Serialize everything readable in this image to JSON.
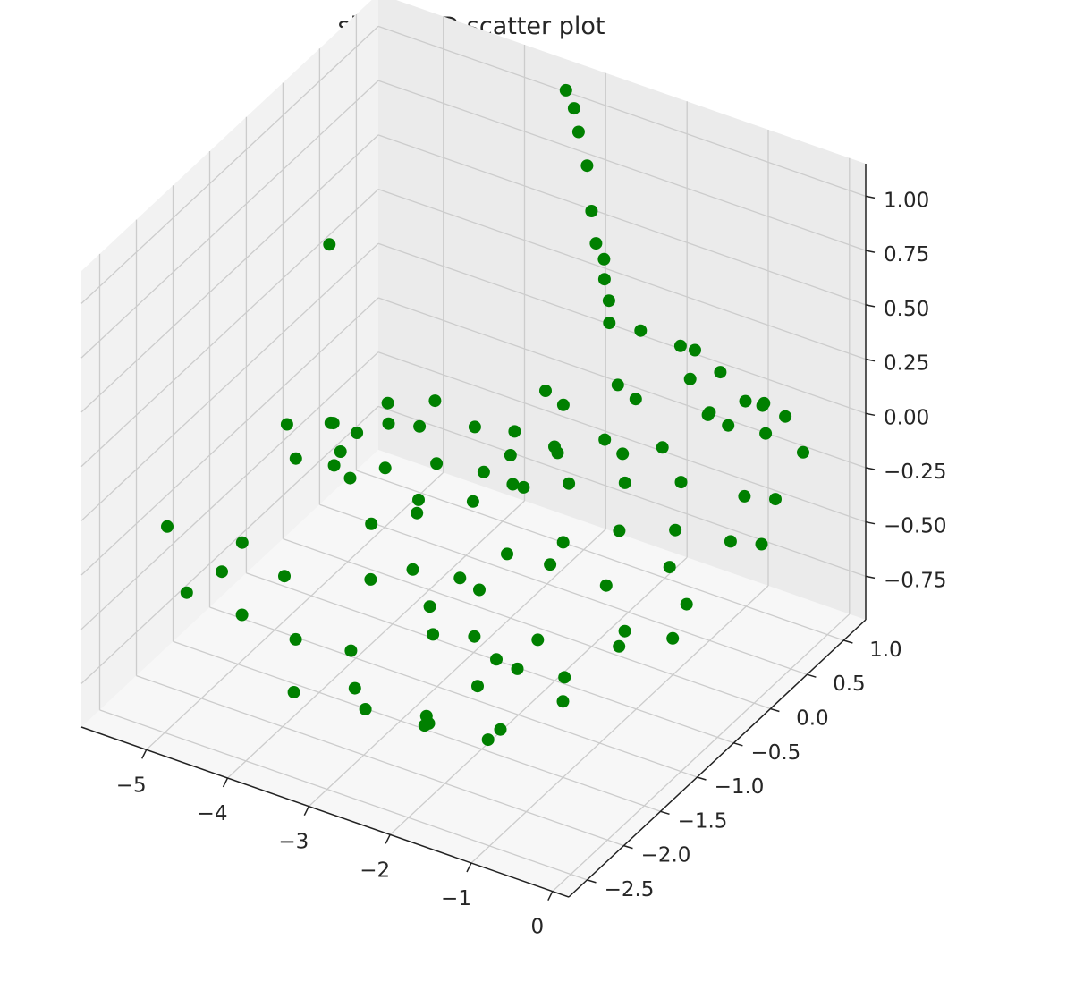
{
  "chart_data": {
    "type": "scatter",
    "projection": "3d",
    "title": "simple 3D scatter plot",
    "xlabel": "",
    "ylabel": "",
    "zlabel": "",
    "xlim": [
      -5.8,
      0.2
    ],
    "ylim": [
      -2.75,
      1.3
    ],
    "zlim": [
      -0.95,
      1.15
    ],
    "x_ticks": [
      "−5",
      "−4",
      "−3",
      "−2",
      "−1",
      "0"
    ],
    "y_ticks": [
      "−2.5",
      "−2.0",
      "−1.5",
      "−1.0",
      "−0.5",
      "0.0",
      "0.5",
      "1.0"
    ],
    "z_ticks": [
      "−0.75",
      "−0.50",
      "−0.25",
      "0.00",
      "0.25",
      "0.50",
      "0.75",
      "1.00"
    ],
    "x_tick_values": [
      -5,
      -4,
      -3,
      -2,
      -1,
      0
    ],
    "y_tick_values": [
      -2.5,
      -2.0,
      -1.5,
      -1.0,
      -0.5,
      0.0,
      0.5,
      1.0
    ],
    "z_tick_values": [
      -0.75,
      -0.5,
      -0.25,
      0.0,
      0.25,
      0.5,
      0.75,
      1.0
    ],
    "grid": true,
    "marker_color": "#008000",
    "series": [
      {
        "points": [
          [
            -3.4,
            1.2,
            1.05
          ],
          [
            -3.3,
            1.2,
            0.98
          ],
          [
            -3.2,
            1.15,
            0.9
          ],
          [
            -3.05,
            1.1,
            0.78
          ],
          [
            -2.95,
            1.05,
            0.6
          ],
          [
            -2.85,
            1.0,
            0.48
          ],
          [
            -2.75,
            1.0,
            0.42
          ],
          [
            -2.7,
            0.95,
            0.35
          ],
          [
            -2.6,
            0.9,
            0.28
          ],
          [
            -2.55,
            0.85,
            0.2
          ],
          [
            -5.3,
            -0.5,
            -0.2
          ],
          [
            -5.1,
            -0.6,
            -0.3
          ],
          [
            -5.0,
            -0.2,
            -0.25
          ],
          [
            -4.9,
            -0.3,
            -0.4
          ],
          [
            -4.8,
            -0.1,
            -0.3
          ],
          [
            -4.6,
            0.1,
            -0.2
          ],
          [
            -4.5,
            0.0,
            -0.25
          ],
          [
            -4.3,
            0.2,
            -0.3
          ],
          [
            -4.2,
            0.3,
            -0.2
          ],
          [
            -4.0,
            0.1,
            -0.4
          ],
          [
            -3.8,
            0.4,
            -0.3
          ],
          [
            -3.6,
            0.3,
            -0.45
          ],
          [
            -3.4,
            0.5,
            -0.3
          ],
          [
            -3.2,
            0.4,
            -0.5
          ],
          [
            -3.0,
            0.6,
            -0.35
          ],
          [
            -5.6,
            -1.8,
            -0.3
          ],
          [
            -5.4,
            -1.0,
            -0.6
          ],
          [
            -5.2,
            -1.5,
            -0.55
          ],
          [
            -5.0,
            -2.2,
            -0.4
          ],
          [
            -4.7,
            -1.2,
            -0.6
          ],
          [
            -4.5,
            -2.0,
            -0.5
          ],
          [
            -4.2,
            -1.6,
            -0.7
          ],
          [
            -4.0,
            -0.8,
            -0.65
          ],
          [
            -3.7,
            -1.4,
            -0.75
          ],
          [
            -3.5,
            -2.4,
            -0.6
          ],
          [
            -3.2,
            -1.9,
            -0.7
          ],
          [
            -3.0,
            -1.1,
            -0.55
          ],
          [
            -2.8,
            -2.2,
            -0.65
          ],
          [
            -2.5,
            -1.7,
            -0.8
          ],
          [
            -2.2,
            -2.0,
            -0.7
          ],
          [
            -2.0,
            -1.3,
            -0.6
          ],
          [
            -1.8,
            -2.5,
            -0.5
          ],
          [
            -1.5,
            -1.8,
            -0.7
          ],
          [
            -1.2,
            -2.3,
            -0.55
          ],
          [
            -1.0,
            -1.5,
            -0.6
          ],
          [
            -4.0,
            -0.6,
            -0.2
          ],
          [
            -3.9,
            -0.9,
            -0.35
          ],
          [
            -3.7,
            -0.5,
            -0.4
          ],
          [
            -3.5,
            -0.7,
            -0.25
          ],
          [
            -3.3,
            -1.0,
            -0.45
          ],
          [
            -3.1,
            -0.4,
            -0.3
          ],
          [
            -2.9,
            -0.8,
            -0.5
          ],
          [
            -2.7,
            -0.3,
            -0.2
          ],
          [
            -2.5,
            -0.6,
            -0.4
          ],
          [
            -2.3,
            -1.2,
            -0.35
          ],
          [
            -2.1,
            -0.2,
            -0.15
          ],
          [
            -1.9,
            -0.5,
            -0.3
          ],
          [
            -1.7,
            -0.9,
            -0.25
          ],
          [
            -1.5,
            -0.1,
            -0.1
          ],
          [
            -1.3,
            -0.4,
            -0.2
          ],
          [
            -1.1,
            -0.8,
            -0.3
          ],
          [
            -0.9,
            0.0,
            -0.05
          ],
          [
            -0.7,
            -0.3,
            -0.15
          ],
          [
            -0.5,
            -0.6,
            -0.2
          ],
          [
            -0.3,
            0.2,
            -0.1
          ],
          [
            -0.2,
            -0.1,
            -0.2
          ],
          [
            -0.1,
            0.4,
            -0.15
          ],
          [
            0.0,
            0.1,
            -0.25
          ],
          [
            -0.4,
            0.6,
            0.05
          ],
          [
            -0.6,
            0.8,
            0.1
          ],
          [
            -0.8,
            1.0,
            0.0
          ],
          [
            -1.0,
            0.5,
            0.1
          ],
          [
            -1.2,
            0.7,
            0.0
          ],
          [
            -1.4,
            0.3,
            -0.05
          ],
          [
            -1.6,
            0.9,
            0.05
          ],
          [
            -1.8,
            0.2,
            -0.1
          ],
          [
            -2.0,
            0.6,
            0.0
          ],
          [
            -2.2,
            0.4,
            -0.15
          ],
          [
            -2.4,
            0.8,
            -0.05
          ],
          [
            -2.6,
            0.2,
            -0.2
          ],
          [
            -2.8,
            0.5,
            -0.1
          ],
          [
            -3.0,
            0.0,
            -0.2
          ],
          [
            -3.2,
            0.7,
            -0.15
          ],
          [
            -1.9,
            1.1,
            0.1
          ],
          [
            -1.5,
            1.2,
            0.0
          ],
          [
            -1.1,
            1.1,
            -0.05
          ],
          [
            -0.7,
            1.2,
            -0.1
          ],
          [
            -0.3,
            1.0,
            -0.15
          ],
          [
            -2.3,
            1.0,
            0.15
          ],
          [
            -2.0,
            -1.6,
            -0.4
          ],
          [
            -1.6,
            -2.0,
            -0.45
          ],
          [
            -1.2,
            -1.9,
            -0.35
          ],
          [
            -0.8,
            -1.7,
            -0.4
          ],
          [
            -0.4,
            -1.4,
            -0.3
          ],
          [
            -0.1,
            -1.0,
            -0.35
          ],
          [
            -0.2,
            -0.7,
            -0.3
          ],
          [
            -0.6,
            -1.1,
            -0.35
          ],
          [
            -1.4,
            -1.4,
            -0.4
          ],
          [
            -2.6,
            -1.5,
            -0.5
          ],
          [
            -4.4,
            -0.9,
            0.05
          ],
          [
            -4.1,
            -1.1,
            0.02
          ],
          [
            -3.8,
            -1.3,
            0.0
          ],
          [
            -5.5,
            0.3,
            0.35
          ],
          [
            -1.0,
            0.3,
            0.45
          ],
          [
            -0.5,
            0.2,
            0.2
          ]
        ]
      }
    ]
  }
}
